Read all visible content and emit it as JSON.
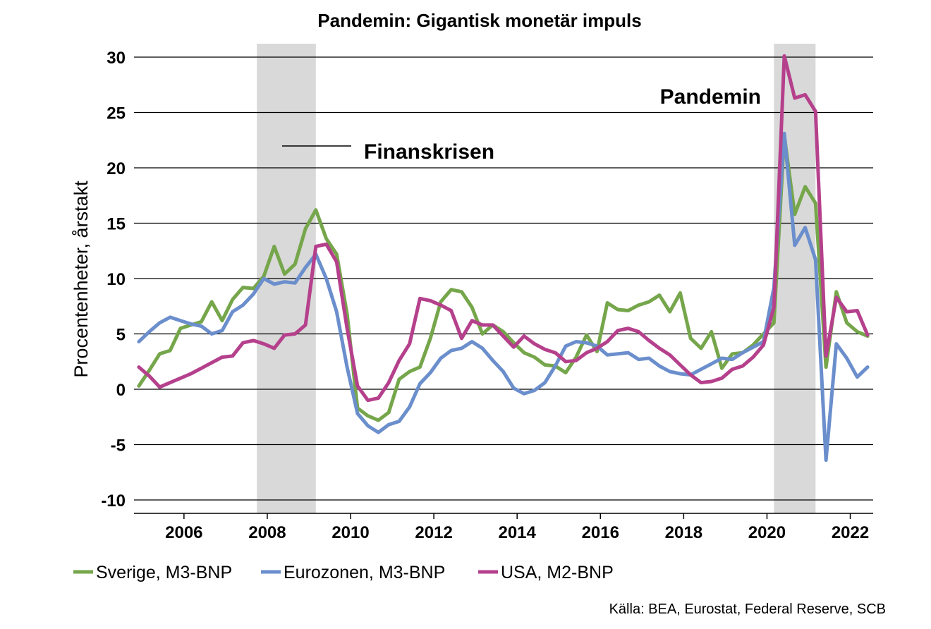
{
  "chart_data": {
    "type": "line",
    "title": "Pandemin: Gigantisk monetär impuls",
    "ylabel": "Procentenheter, årstakt",
    "xlabel": "",
    "ylim": [
      -10,
      30
    ],
    "yticks": [
      30,
      25,
      20,
      15,
      10,
      5,
      0,
      -5,
      -10
    ],
    "ytick_labels": [
      "30",
      "25",
      "20",
      "15",
      "10",
      "5",
      "0",
      "-5",
      "-10"
    ],
    "xticks": [
      "2006",
      "2008",
      "2010",
      "2012",
      "2014",
      "2016",
      "2018",
      "2020",
      "2022"
    ],
    "grid": "horizontal",
    "shaded_periods": [
      {
        "start": "2007-10",
        "end": "2009-03"
      },
      {
        "start": "2020-03",
        "end": "2021-03"
      }
    ],
    "annotations": [
      {
        "text": "Finanskrisen"
      },
      {
        "text": "Pandemin"
      }
    ],
    "legend_position": "bottom",
    "source": "Källa: BEA, Eurostat, Federal Reserve, SCB",
    "series": [
      {
        "name": "Sverige, M3-BNP",
        "color": "#76a64b",
        "x": [
          "2004-12",
          "2005-03",
          "2005-06",
          "2005-09",
          "2005-12",
          "2006-03",
          "2006-06",
          "2006-09",
          "2006-12",
          "2007-03",
          "2007-06",
          "2007-09",
          "2007-12",
          "2008-03",
          "2008-06",
          "2008-09",
          "2008-12",
          "2009-03",
          "2009-06",
          "2009-09",
          "2009-12",
          "2010-03",
          "2010-06",
          "2010-09",
          "2010-12",
          "2011-03",
          "2011-06",
          "2011-09",
          "2011-12",
          "2012-03",
          "2012-06",
          "2012-09",
          "2012-12",
          "2013-03",
          "2013-06",
          "2013-09",
          "2013-12",
          "2014-03",
          "2014-06",
          "2014-09",
          "2014-12",
          "2015-03",
          "2015-06",
          "2015-09",
          "2015-12",
          "2016-03",
          "2016-06",
          "2016-09",
          "2016-12",
          "2017-03",
          "2017-06",
          "2017-09",
          "2017-12",
          "2018-03",
          "2018-06",
          "2018-09",
          "2018-12",
          "2019-03",
          "2019-06",
          "2019-09",
          "2019-12",
          "2020-03",
          "2020-06",
          "2020-09",
          "2020-12",
          "2021-03",
          "2021-06",
          "2021-09",
          "2021-12",
          "2022-03",
          "2022-06"
        ],
        "values": [
          0.3,
          1.7,
          3.2,
          3.5,
          5.5,
          5.8,
          6.1,
          7.9,
          6.2,
          8.1,
          9.2,
          9.1,
          10.2,
          12.9,
          10.4,
          11.3,
          14.5,
          16.2,
          13.6,
          12.2,
          6.8,
          -1.7,
          -2.4,
          -2.8,
          -2.1,
          0.9,
          1.6,
          2.0,
          4.6,
          7.9,
          9.0,
          8.8,
          7.4,
          5.0,
          5.8,
          5.2,
          4.2,
          3.3,
          2.9,
          2.2,
          2.1,
          1.5,
          2.9,
          4.9,
          3.4,
          7.8,
          7.2,
          7.1,
          7.6,
          7.9,
          8.5,
          7.0,
          8.7,
          4.6,
          3.7,
          5.2,
          1.9,
          3.2,
          3.3,
          4.0,
          5.0,
          6.0,
          22.9,
          15.8,
          18.3,
          16.8,
          2.0,
          8.8,
          6.0,
          5.2,
          4.8
        ]
      },
      {
        "name": "Eurozonen, M3-BNP",
        "color": "#6b8ecc",
        "x": [
          "2004-12",
          "2005-03",
          "2005-06",
          "2005-09",
          "2005-12",
          "2006-03",
          "2006-06",
          "2006-09",
          "2006-12",
          "2007-03",
          "2007-06",
          "2007-09",
          "2007-12",
          "2008-03",
          "2008-06",
          "2008-09",
          "2008-12",
          "2009-03",
          "2009-06",
          "2009-09",
          "2009-12",
          "2010-03",
          "2010-06",
          "2010-09",
          "2010-12",
          "2011-03",
          "2011-06",
          "2011-09",
          "2011-12",
          "2012-03",
          "2012-06",
          "2012-09",
          "2012-12",
          "2013-03",
          "2013-06",
          "2013-09",
          "2013-12",
          "2014-03",
          "2014-06",
          "2014-09",
          "2014-12",
          "2015-03",
          "2015-06",
          "2015-09",
          "2015-12",
          "2016-03",
          "2016-06",
          "2016-09",
          "2016-12",
          "2017-03",
          "2017-06",
          "2017-09",
          "2017-12",
          "2018-03",
          "2018-06",
          "2018-09",
          "2018-12",
          "2019-03",
          "2019-06",
          "2019-09",
          "2019-12",
          "2020-03",
          "2020-06",
          "2020-09",
          "2020-12",
          "2021-03",
          "2021-06",
          "2021-09",
          "2021-12",
          "2022-03",
          "2022-06"
        ],
        "values": [
          4.3,
          5.2,
          6.0,
          6.5,
          6.2,
          5.9,
          5.7,
          5.0,
          5.3,
          7.0,
          7.6,
          8.6,
          10.0,
          9.5,
          9.7,
          9.6,
          11.0,
          12.2,
          10.0,
          7.0,
          2.0,
          -2.2,
          -3.3,
          -3.9,
          -3.2,
          -2.9,
          -1.6,
          0.5,
          1.5,
          2.8,
          3.5,
          3.7,
          4.3,
          3.7,
          2.6,
          1.6,
          0.1,
          -0.4,
          -0.1,
          0.6,
          2.1,
          3.9,
          4.3,
          4.2,
          3.9,
          3.1,
          3.2,
          3.3,
          2.7,
          2.8,
          2.1,
          1.6,
          1.4,
          1.3,
          1.8,
          2.3,
          2.8,
          2.7,
          3.3,
          3.8,
          4.3,
          9.2,
          23.1,
          13.0,
          14.6,
          11.7,
          -6.4,
          4.1,
          2.8,
          1.1,
          2.0
        ]
      },
      {
        "name": "USA, M2-BNP",
        "color": "#b5408c",
        "x": [
          "2004-12",
          "2005-03",
          "2005-06",
          "2005-09",
          "2005-12",
          "2006-03",
          "2006-06",
          "2006-09",
          "2006-12",
          "2007-03",
          "2007-06",
          "2007-09",
          "2007-12",
          "2008-03",
          "2008-06",
          "2008-09",
          "2008-12",
          "2009-03",
          "2009-06",
          "2009-09",
          "2009-12",
          "2010-03",
          "2010-06",
          "2010-09",
          "2010-12",
          "2011-03",
          "2011-06",
          "2011-09",
          "2011-12",
          "2012-03",
          "2012-06",
          "2012-09",
          "2012-12",
          "2013-03",
          "2013-06",
          "2013-09",
          "2013-12",
          "2014-03",
          "2014-06",
          "2014-09",
          "2014-12",
          "2015-03",
          "2015-06",
          "2015-09",
          "2015-12",
          "2016-03",
          "2016-06",
          "2016-09",
          "2016-12",
          "2017-03",
          "2017-06",
          "2017-09",
          "2017-12",
          "2018-03",
          "2018-06",
          "2018-09",
          "2018-12",
          "2019-03",
          "2019-06",
          "2019-09",
          "2019-12",
          "2020-03",
          "2020-06",
          "2020-09",
          "2020-12",
          "2021-03",
          "2021-06",
          "2021-09",
          "2021-12",
          "2022-03",
          "2022-06"
        ],
        "values": [
          2.0,
          1.2,
          0.2,
          0.6,
          1.0,
          1.4,
          1.9,
          2.4,
          2.9,
          3.0,
          4.2,
          4.4,
          4.1,
          3.7,
          4.9,
          5.0,
          5.8,
          12.9,
          13.1,
          11.5,
          5.5,
          0.3,
          -1.0,
          -0.8,
          0.6,
          2.6,
          4.1,
          8.2,
          8.0,
          7.6,
          7.1,
          4.6,
          6.2,
          5.8,
          5.8,
          4.8,
          3.8,
          4.8,
          4.1,
          3.6,
          3.3,
          2.5,
          2.6,
          3.3,
          3.7,
          4.3,
          5.3,
          5.5,
          5.2,
          4.4,
          3.7,
          3.1,
          2.2,
          1.3,
          0.6,
          0.7,
          1.0,
          1.8,
          2.1,
          2.9,
          4.0,
          7.4,
          30.1,
          26.3,
          26.6,
          25.1,
          3.0,
          8.3,
          7.0,
          7.1,
          4.9
        ]
      }
    ]
  }
}
